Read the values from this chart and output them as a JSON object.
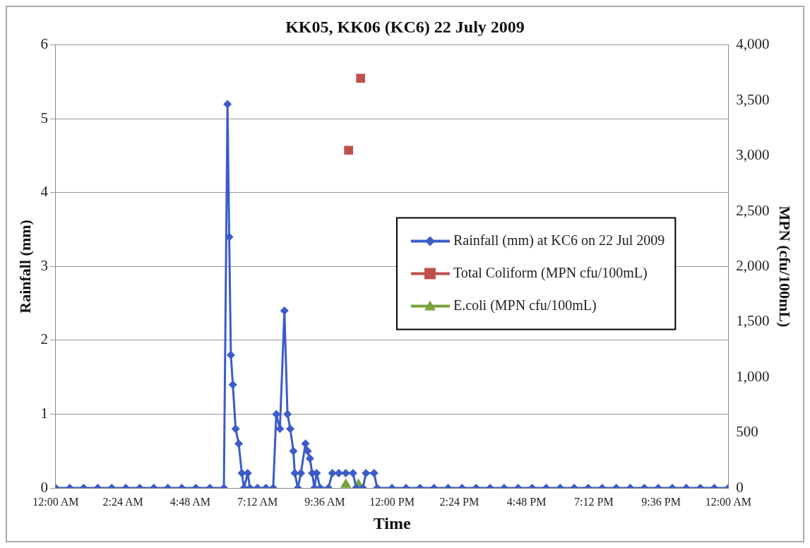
{
  "chart_data": {
    "type": "line",
    "title": "KK05, KK06 (KC6) 22 July 2009",
    "xlabel": "Time",
    "ylabel": "Rainfall (mm)",
    "y2label": "MPN (cfu/100mL)",
    "xlim": [
      0,
      24
    ],
    "xticks": [
      {
        "value": 0,
        "label": "12:00 AM"
      },
      {
        "value": 2.4,
        "label": "2:24 AM"
      },
      {
        "value": 4.8,
        "label": "4:48 AM"
      },
      {
        "value": 7.2,
        "label": "7:12 AM"
      },
      {
        "value": 9.6,
        "label": "9:36 AM"
      },
      {
        "value": 12,
        "label": "12:00 PM"
      },
      {
        "value": 14.4,
        "label": "2:24 PM"
      },
      {
        "value": 16.8,
        "label": "4:48 PM"
      },
      {
        "value": 19.2,
        "label": "7:12 PM"
      },
      {
        "value": 21.6,
        "label": "9:36 PM"
      },
      {
        "value": 24,
        "label": "12:00 AM"
      }
    ],
    "ylim": [
      0,
      6
    ],
    "yticks": [
      0,
      1,
      2,
      3,
      4,
      5,
      6
    ],
    "y2lim": [
      0,
      4000
    ],
    "y2ticks": [
      0,
      500,
      {
        "value": 1000,
        "label": "1,000"
      },
      {
        "value": 1500,
        "label": "1,500"
      },
      {
        "value": 2000,
        "label": "2,000"
      },
      {
        "value": 2500,
        "label": "2,500"
      },
      {
        "value": 3000,
        "label": "3,000"
      },
      {
        "value": 3500,
        "label": "3,500"
      },
      {
        "value": 4000,
        "label": "4,000"
      }
    ],
    "grid": "y",
    "legend": "right",
    "series": [
      {
        "name": "Rainfall (mm) at KC6 on 22 Jul 2009",
        "color": "#3b5cc8",
        "marker": "diamond",
        "line_style": "solid",
        "x": [
          0,
          0.5,
          1,
          1.5,
          2,
          2.5,
          3,
          3.5,
          4,
          4.5,
          5,
          5.5,
          6.0,
          6.13,
          6.19,
          6.25,
          6.32,
          6.42,
          6.53,
          6.64,
          6.72,
          6.85,
          6.93,
          7.2,
          7.5,
          7.76,
          7.87,
          8.0,
          8.16,
          8.27,
          8.37,
          8.48,
          8.53,
          8.64,
          8.75,
          8.91,
          8.99,
          9.07,
          9.15,
          9.23,
          9.31,
          9.44,
          9.73,
          9.87,
          10.1,
          10.35,
          10.61,
          10.72,
          10.96,
          11.07,
          11.36,
          11.47,
          12,
          12.5,
          13,
          13.5,
          14,
          14.5,
          15,
          15.5,
          16,
          16.5,
          17,
          17.5,
          18,
          18.5,
          19,
          19.5,
          20,
          20.5,
          21,
          21.5,
          22,
          22.5,
          23,
          23.5,
          24
        ],
        "values": [
          0,
          0,
          0,
          0,
          0,
          0,
          0,
          0,
          0,
          0,
          0,
          0,
          0,
          5.2,
          3.4,
          1.8,
          1.4,
          0.8,
          0.6,
          0.2,
          0,
          0.2,
          0,
          0,
          0,
          0,
          1.0,
          0.8,
          2.4,
          1.0,
          0.8,
          0.5,
          0.2,
          0,
          0.2,
          0.6,
          0.5,
          0.4,
          0.2,
          0,
          0.2,
          0,
          0,
          0.2,
          0.2,
          0.2,
          0.2,
          0,
          0,
          0.2,
          0.2,
          0,
          0,
          0,
          0,
          0,
          0,
          0,
          0,
          0,
          0,
          0,
          0,
          0,
          0,
          0,
          0,
          0,
          0,
          0,
          0,
          0,
          0,
          0,
          0,
          0,
          0
        ]
      },
      {
        "name": "Total Coliform (MPN cfu/100mL)",
        "type": "scatter",
        "axis": "y2",
        "color": "#c0504d",
        "marker": "square",
        "x": [
          10.45,
          10.88
        ],
        "values": [
          3050,
          3700
        ]
      },
      {
        "name": "E.coli (MPN cfu/100mL)",
        "type": "scatter",
        "axis": "y2",
        "color": "#77a33b",
        "marker": "triangle",
        "x": [
          10.35,
          10.8
        ],
        "values": [
          30,
          30
        ]
      }
    ]
  }
}
